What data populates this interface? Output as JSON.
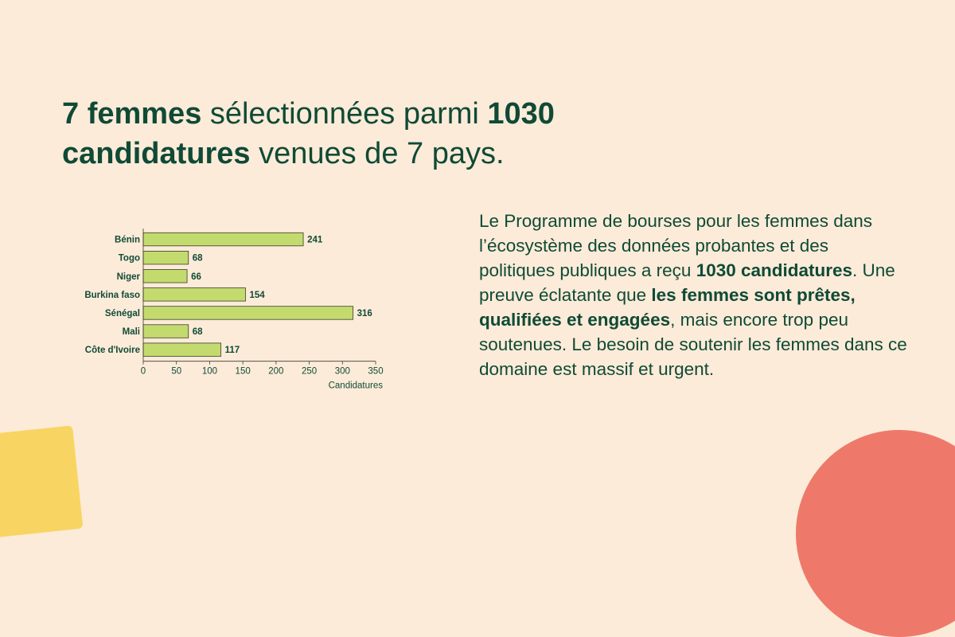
{
  "headline": {
    "part1_bold": "7 femmes",
    "part2": " sélectionnées parmi ",
    "part3_bold": "1030",
    "part4_bold": "candidatures",
    "part5": " venues de 7 pays."
  },
  "body": {
    "p1": "Le Programme de bourses pour les femmes dans l’écosystème des données probantes et des politiques publiques a reçu ",
    "b1": "1030 candidatures",
    "p2": ". Une preuve éclatante que ",
    "b2": "les femmes sont prêtes, qualifiées et engagées",
    "p3": ", mais encore trop peu soutenues. Le besoin de soutenir les femmes dans ce domaine est massif et urgent."
  },
  "colors": {
    "background": "#fcebd8",
    "text": "#0f4a36",
    "bar_fill": "#c3db6e",
    "bar_stroke": "#3b3b2a",
    "deco_yellow": "#f8d563",
    "deco_red": "#ee796a"
  },
  "chart_data": {
    "type": "bar",
    "orientation": "horizontal",
    "categories": [
      "Bénin",
      "Togo",
      "Niger",
      "Burkina faso",
      "Sénégal",
      "Mali",
      "Côte d'Ivoire"
    ],
    "values": [
      241,
      68,
      66,
      154,
      316,
      68,
      117
    ],
    "xlabel": "Candidatures",
    "ylabel": "",
    "xlim": [
      0,
      350
    ],
    "xticks": [
      0,
      50,
      100,
      150,
      200,
      250,
      300,
      350
    ],
    "grid": false,
    "data_labels": true
  }
}
